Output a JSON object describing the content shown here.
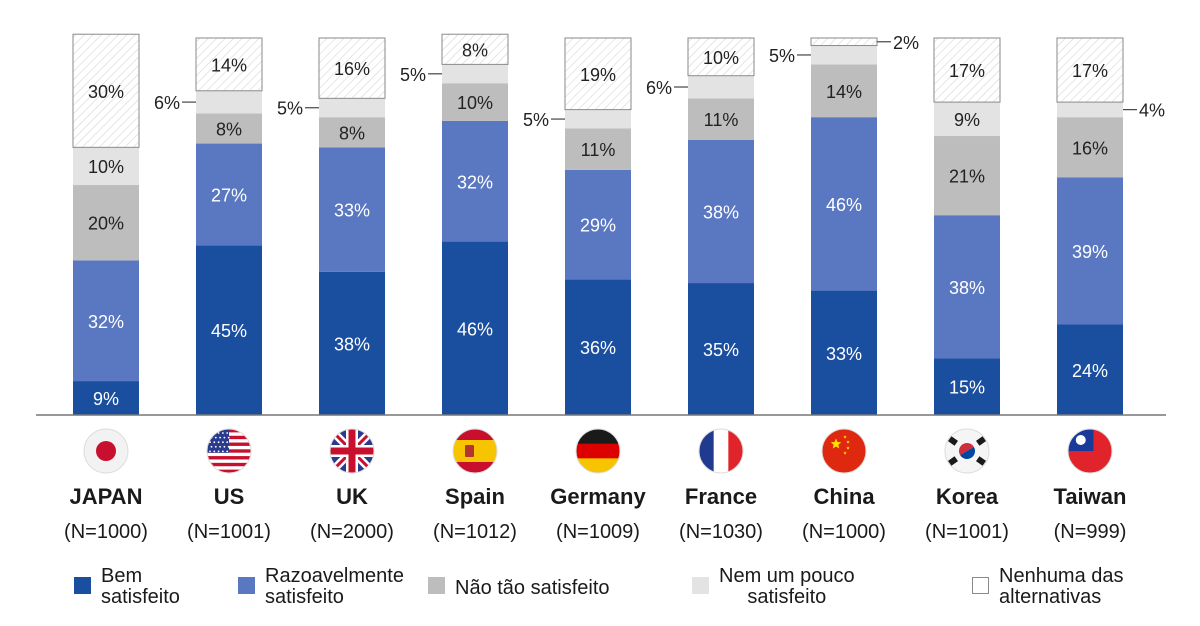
{
  "chart_data": {
    "type": "bar",
    "stacked": true,
    "categories": [
      "JAPAN",
      "US",
      "UK",
      "Spain",
      "Germany",
      "France",
      "China",
      "Korea",
      "Taiwan"
    ],
    "sample_sizes": [
      "(N=1000)",
      "(N=1001)",
      "(N=2000)",
      "(N=1012)",
      "(N=1009)",
      "(N=1030)",
      "(N=1000)",
      "(N=1001)",
      "(N=999)"
    ],
    "series": [
      {
        "name": "Bem satisfeito",
        "legend_text": "Bem\nsatisfeito",
        "color": "#1a4fa0",
        "values": [
          9,
          45,
          38,
          46,
          36,
          35,
          33,
          15,
          24
        ]
      },
      {
        "name": "Razoavelmente satisfeito",
        "legend_text": "Razoavelmente\nsatisfeito",
        "color": "#5a77c2",
        "values": [
          32,
          27,
          33,
          32,
          29,
          38,
          46,
          38,
          39
        ]
      },
      {
        "name": "Não tão satisfeito",
        "legend_text": "Não tão satisfeito",
        "color": "#bdbdbd",
        "values": [
          20,
          8,
          8,
          10,
          11,
          11,
          14,
          21,
          16
        ]
      },
      {
        "name": "Nem um pouco satisfeito",
        "legend_text": "Nem um pouco\nsatisfeito",
        "color": "#e3e3e3",
        "values": [
          10,
          6,
          5,
          5,
          5,
          6,
          5,
          9,
          4
        ]
      },
      {
        "name": "Nenhuma das alternativas",
        "legend_text": "Nenhuma das\nalternativas",
        "color": "#ffffff",
        "values": [
          30,
          14,
          16,
          8,
          19,
          10,
          2,
          17,
          17
        ]
      }
    ],
    "ylim": [
      0,
      100
    ],
    "title": "",
    "xlabel": "",
    "ylabel": "",
    "flags": [
      "japan-flag-icon",
      "us-flag-icon",
      "uk-flag-icon",
      "spain-flag-icon",
      "germany-flag-icon",
      "france-flag-icon",
      "china-flag-icon",
      "korea-flag-icon",
      "taiwan-flag-icon"
    ],
    "legend_position": "bottom",
    "grid": false
  }
}
